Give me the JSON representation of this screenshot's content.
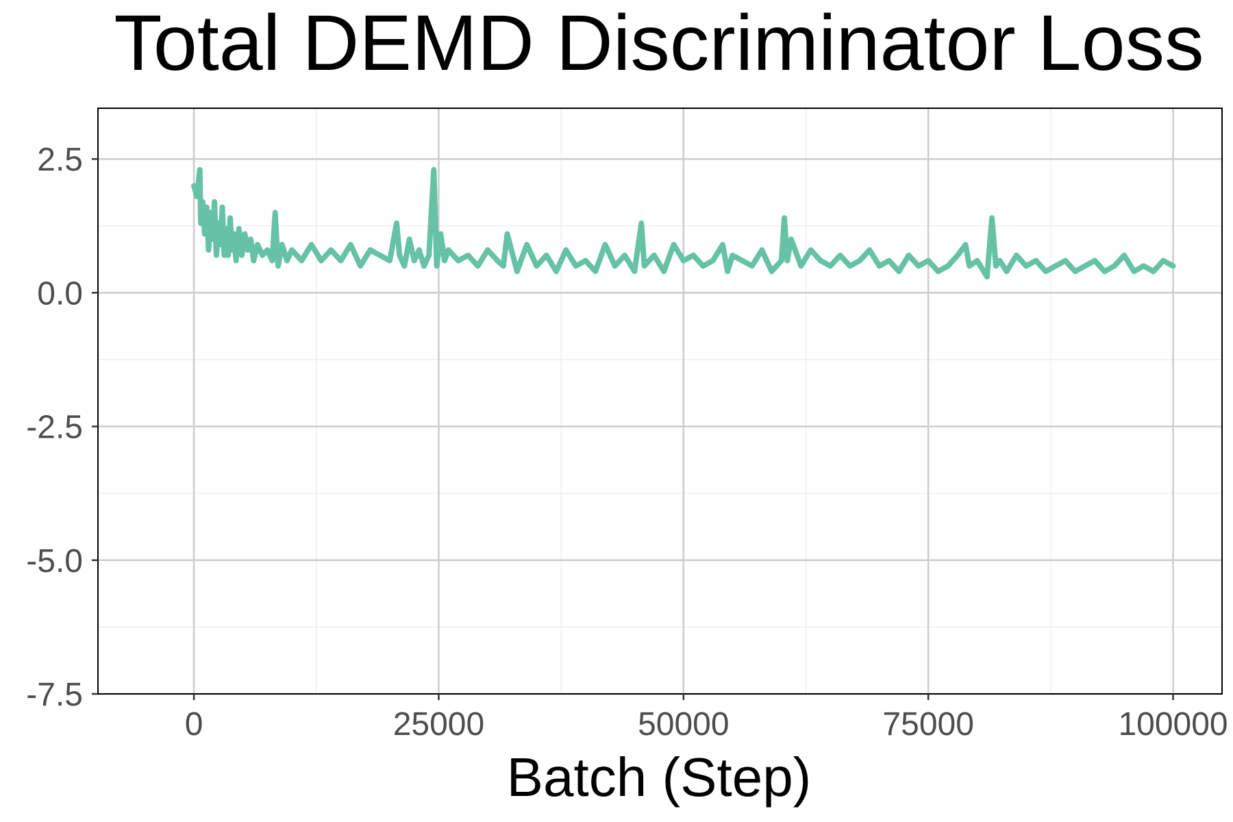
{
  "chart_data": {
    "type": "line",
    "title": "Total DEMD Discriminator Loss",
    "xlabel": "Batch (Step)",
    "ylabel": "",
    "xlim": [
      -9800,
      105000
    ],
    "ylim": [
      -7.5,
      3.45
    ],
    "x_ticks": [
      0,
      25000,
      50000,
      75000,
      100000
    ],
    "x_tick_labels": [
      "0",
      "25000",
      "50000",
      "75000",
      "100000"
    ],
    "y_ticks": [
      2.5,
      0.0,
      -2.5,
      -5.0,
      -7.5
    ],
    "y_tick_labels": [
      "2.5",
      "0.0",
      "-2.5",
      "-5.0",
      "-7.5"
    ],
    "grid": true,
    "line_color": "#66c2a5",
    "background": "#ffffff",
    "grid_major_color": "#cccccc",
    "grid_minor_color": "#ebebeb",
    "series": [
      {
        "x": [
          0,
          300,
          600,
          700,
          900,
          1100,
          1300,
          1500,
          1700,
          1900,
          2100,
          2300,
          2500,
          2700,
          2900,
          3100,
          3300,
          3500,
          3700,
          3900,
          4100,
          4300,
          4600,
          4900,
          5200,
          5500,
          5800,
          6100,
          6500,
          7000,
          7500,
          8000,
          8300,
          8600,
          9000,
          9500,
          10000,
          10500,
          11000,
          12000,
          13000,
          14000,
          15000,
          16000,
          17000,
          18000,
          19000,
          20000,
          20700,
          21000,
          21500,
          22000,
          22500,
          23000,
          23500,
          24000,
          24500,
          24800,
          25200,
          25600,
          26000,
          27000,
          28000,
          29000,
          30000,
          31000,
          31600,
          32000,
          33000,
          34000,
          35000,
          36000,
          37000,
          38000,
          39000,
          40000,
          41000,
          42000,
          43000,
          44000,
          45000,
          45700,
          46000,
          47000,
          48000,
          49000,
          50000,
          51000,
          52000,
          53000,
          54000,
          54500,
          55000,
          56000,
          57000,
          58000,
          59000,
          60000,
          60300,
          60600,
          61000,
          62000,
          63000,
          64000,
          65000,
          66000,
          67000,
          68000,
          69000,
          70000,
          71000,
          72000,
          73000,
          74000,
          75000,
          76000,
          77000,
          78000,
          78800,
          79200,
          80000,
          81000,
          81500,
          81900,
          82300,
          83000,
          84000,
          85000,
          86000,
          87000,
          88000,
          89000,
          90000,
          91000,
          92000,
          93000,
          94000,
          95000,
          96000,
          97000,
          98000,
          99000,
          100000
        ],
        "y": [
          2.0,
          1.8,
          2.3,
          1.3,
          1.7,
          1.1,
          1.6,
          0.8,
          1.5,
          1.0,
          1.7,
          0.7,
          1.3,
          0.9,
          1.6,
          0.7,
          1.2,
          0.7,
          1.4,
          0.8,
          1.1,
          0.6,
          1.2,
          0.7,
          1.1,
          0.8,
          1.0,
          0.6,
          0.9,
          0.7,
          0.8,
          0.6,
          1.5,
          0.5,
          0.9,
          0.6,
          0.8,
          0.7,
          0.6,
          0.9,
          0.6,
          0.8,
          0.6,
          0.9,
          0.5,
          0.8,
          0.7,
          0.6,
          1.3,
          0.7,
          0.5,
          1.0,
          0.6,
          0.8,
          0.5,
          0.7,
          2.3,
          0.5,
          1.1,
          0.6,
          0.8,
          0.6,
          0.7,
          0.5,
          0.8,
          0.6,
          0.5,
          1.1,
          0.4,
          0.9,
          0.5,
          0.7,
          0.4,
          0.8,
          0.5,
          0.6,
          0.4,
          0.9,
          0.5,
          0.7,
          0.4,
          1.3,
          0.5,
          0.7,
          0.4,
          0.9,
          0.6,
          0.7,
          0.5,
          0.6,
          0.9,
          0.4,
          0.7,
          0.6,
          0.5,
          0.8,
          0.4,
          0.6,
          1.4,
          0.6,
          1.0,
          0.5,
          0.8,
          0.6,
          0.5,
          0.7,
          0.5,
          0.6,
          0.8,
          0.5,
          0.6,
          0.4,
          0.7,
          0.5,
          0.6,
          0.4,
          0.5,
          0.7,
          0.9,
          0.5,
          0.6,
          0.3,
          1.4,
          0.5,
          0.6,
          0.4,
          0.7,
          0.5,
          0.6,
          0.4,
          0.5,
          0.6,
          0.4,
          0.5,
          0.6,
          0.4,
          0.5,
          0.7,
          0.4,
          0.5,
          0.4,
          0.6,
          0.5
        ]
      }
    ]
  }
}
